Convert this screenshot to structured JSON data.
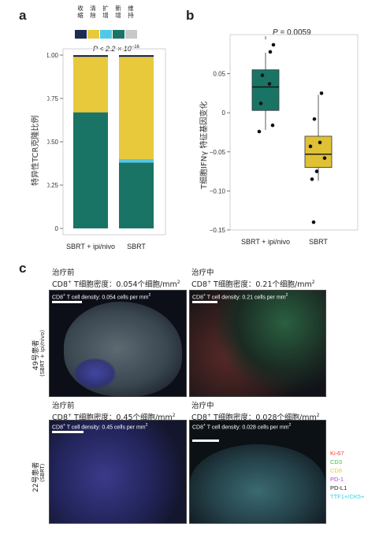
{
  "panels": {
    "a": "a",
    "b": "b",
    "c": "c"
  },
  "panel_a": {
    "legend": [
      {
        "label": "收缩",
        "color": "#1d2c50"
      },
      {
        "label": "清除",
        "color": "#e8c93c"
      },
      {
        "label": "扩增",
        "color": "#52c8e8"
      },
      {
        "label": "新增",
        "color": "#1a7466"
      },
      {
        "label": "维持",
        "color": "#c8c8c8"
      }
    ],
    "pvalue_prefix": "P < 2.2 × 10",
    "pvalue_exp": "−16",
    "ylabel": "特异性TCR克隆比例"
  },
  "panel_b": {
    "pvalue": "P = 0.0059",
    "ylabel": "T细胞IFNγ 特征基因变化"
  },
  "chart_data": [
    {
      "type": "bar",
      "stacked": true,
      "categories": [
        "SBRT + ipi/nivo",
        "SBRT"
      ],
      "ylim": [
        0,
        1
      ],
      "yticks": [
        "0",
        "0.25",
        "0.50",
        "0.75",
        "1.00"
      ],
      "ytick_values": [
        0,
        0.25,
        0.5,
        0.75,
        1.0
      ],
      "series": [
        {
          "name": "新增",
          "color": "#1a7466",
          "values": [
            0.67,
            0.38
          ]
        },
        {
          "name": "扩增",
          "color": "#52c8e8",
          "values": [
            0.0,
            0.02
          ]
        },
        {
          "name": "清除",
          "color": "#e8c93c",
          "values": [
            0.32,
            0.59
          ]
        },
        {
          "name": "收缩",
          "color": "#1d2c50",
          "values": [
            0.01,
            0.01
          ]
        }
      ]
    },
    {
      "type": "box",
      "categories": [
        "SBRT + ipi/nivo",
        "SBRT"
      ],
      "ylim": [
        -0.15,
        0.1
      ],
      "yticks": [
        "−0.15",
        "−0.10",
        "−0.05",
        "0",
        "0.05"
      ],
      "ytick_values": [
        -0.15,
        -0.1,
        -0.05,
        0,
        0.05
      ],
      "boxes": [
        {
          "color": "#1a7466",
          "whisker_low": -0.022,
          "q1": 0.003,
          "median": 0.033,
          "q3": 0.055,
          "whisker_high": 0.077
        },
        {
          "color": "#e0c035",
          "whisker_low": -0.087,
          "q1": -0.07,
          "median": -0.053,
          "q3": -0.03,
          "whisker_high": 0.023
        }
      ],
      "points": [
        [
          0.087,
          0.078,
          0.048,
          0.037,
          0.012,
          -0.016,
          -0.024
        ],
        [
          0.025,
          -0.008,
          -0.038,
          -0.043,
          -0.058,
          -0.075,
          -0.085,
          -0.14
        ]
      ]
    }
  ],
  "panel_c": {
    "top_left_title": "治疗前",
    "top_left_density_prefix": "CD8",
    "top_left_density_suffix": " T细胞密度：0.054个细胞/mm",
    "top_left_bar": "CD8",
    "top_left_bar_suffix": " T cell density: 0.054 cells per mm",
    "top_right_title": "治疗中",
    "top_right_density_prefix": "CD8",
    "top_right_density_suffix": " T细胞密度：0.21个细胞/mm",
    "top_right_bar": "CD8",
    "top_right_bar_suffix": " T cell density: 0.21 cells per mm",
    "bottom_left_title": "治疗前",
    "bottom_left_density_prefix": "CD8",
    "bottom_left_density_suffix": " T细胞密度：0.45个细胞/mm",
    "bottom_left_bar": "CD8",
    "bottom_left_bar_suffix": " T cell density: 0.45 cells per mm",
    "bottom_right_title": "治疗中",
    "bottom_right_density_prefix": "CD8",
    "bottom_right_density_suffix": " T细胞密度：0.028个细胞/mm",
    "bottom_right_bar": "CD8",
    "bottom_right_bar_suffix": " T cell density: 0.028 cells per mm",
    "sup_plus": "+",
    "sup_two": "2",
    "row1_patient": "49号患者",
    "row1_group": "(SBRT + ipi/nivo)",
    "row2_patient": "22号患者",
    "row2_group": "(SBRT)",
    "markers": [
      {
        "label": "Ki-67",
        "color": "#ff3b30"
      },
      {
        "label": "CD3",
        "color": "#2ecc40"
      },
      {
        "label": "CD8",
        "color": "#e8c93c"
      },
      {
        "label": "PD-1",
        "color": "#c040e0"
      },
      {
        "label": "PD-L1",
        "color": "#222222"
      },
      {
        "label": "TTF1+/CK5+",
        "color": "#35d0e0"
      }
    ]
  }
}
